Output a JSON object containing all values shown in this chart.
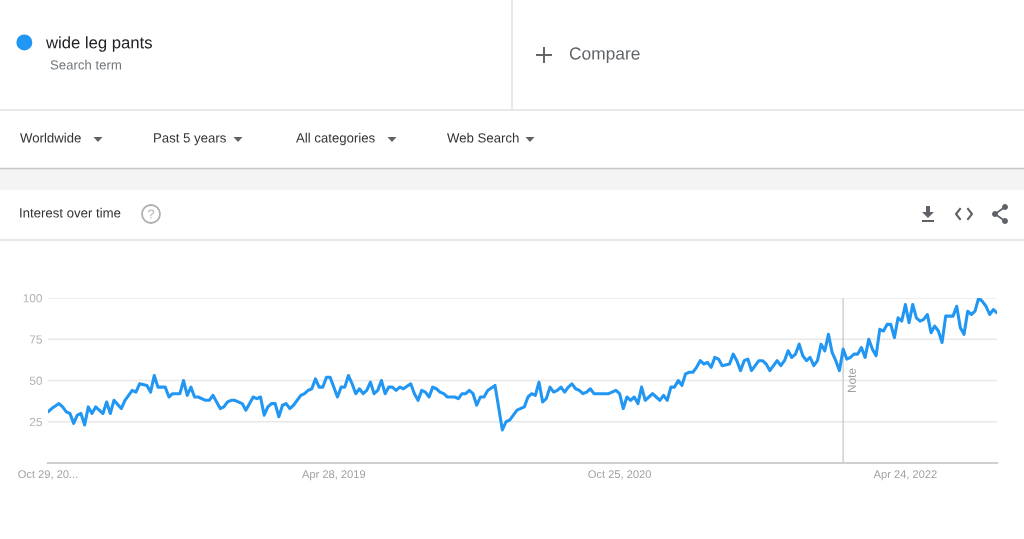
{
  "chart_data": {
    "type": "line",
    "title": "Interest over time",
    "annotations": [
      "Search term",
      "Compare",
      "Worldwide",
      "Past 5 years",
      "All categories",
      "Web Search"
    ],
    "x": [
      "2017-10-29",
      "2017-11-05",
      "2017-11-19",
      "2017-11-26",
      "2017-12-03",
      "2017-12-10",
      "2017-12-17",
      "2017-12-24",
      "2017-12-31",
      "2018-01-07",
      "2018-01-14",
      "2018-01-21",
      "2018-01-28",
      "2018-02-11",
      "2018-02-18",
      "2018-02-25",
      "2018-03-04",
      "2018-03-18",
      "2018-03-25",
      "2018-04-08",
      "2018-04-15",
      "2018-04-22",
      "2018-05-06",
      "2018-05-13",
      "2018-05-20",
      "2018-05-27",
      "2018-06-10",
      "2018-06-17",
      "2018-06-24",
      "2018-07-08",
      "2018-07-15",
      "2018-07-22",
      "2018-07-29",
      "2018-08-05",
      "2018-08-12",
      "2018-08-26",
      "2018-09-02",
      "2018-09-09",
      "2018-09-23",
      "2018-09-30",
      "2018-10-07",
      "2018-10-14",
      "2018-10-21",
      "2018-11-04",
      "2018-11-11",
      "2018-11-25",
      "2018-12-02",
      "2018-12-09",
      "2018-12-16",
      "2018-12-23",
      "2018-12-30",
      "2019-01-06",
      "2019-01-13",
      "2019-01-20",
      "2019-01-27",
      "2019-02-03",
      "2019-02-10",
      "2019-02-24",
      "2019-03-03",
      "2019-03-10",
      "2019-03-17",
      "2019-03-24",
      "2019-03-31",
      "2019-04-07",
      "2019-04-14",
      "2019-04-21",
      "2019-05-05",
      "2019-05-12",
      "2019-05-19",
      "2019-05-26",
      "2019-06-02",
      "2019-06-09",
      "2019-06-16",
      "2019-06-23",
      "2019-06-30",
      "2019-07-07",
      "2019-07-14",
      "2019-07-21",
      "2019-07-28",
      "2019-08-04",
      "2019-08-11",
      "2019-08-18",
      "2019-08-25",
      "2019-09-01",
      "2019-09-08",
      "2019-09-22",
      "2019-09-29",
      "2019-10-06",
      "2019-10-13",
      "2019-10-20",
      "2019-10-27",
      "2019-11-03",
      "2019-11-10",
      "2019-11-17",
      "2019-11-24",
      "2019-12-01",
      "2019-12-15",
      "2019-12-22",
      "2019-12-29",
      "2020-01-05",
      "2020-01-12",
      "2020-01-19",
      "2020-01-26",
      "2020-02-02",
      "2020-02-09",
      "2020-02-16",
      "2020-03-01",
      "2020-03-15",
      "2020-03-22",
      "2020-03-29",
      "2020-04-05",
      "2020-04-12",
      "2020-04-26",
      "2020-05-03",
      "2020-05-10",
      "2020-05-17",
      "2020-05-24",
      "2020-05-31",
      "2020-06-07",
      "2020-06-14",
      "2020-06-21",
      "2020-06-28",
      "2020-07-05",
      "2020-07-12",
      "2020-07-19",
      "2020-07-26",
      "2020-08-02",
      "2020-08-09",
      "2020-08-16",
      "2020-08-23",
      "2020-08-30",
      "2020-09-06",
      "2020-09-13",
      "2020-09-27",
      "2020-10-04",
      "2020-10-18",
      "2020-10-25",
      "2020-11-01",
      "2020-11-08",
      "2020-11-15",
      "2020-11-22",
      "2020-11-29",
      "2020-12-06",
      "2020-12-13",
      "2020-12-20",
      "2020-12-27",
      "2021-01-03",
      "2021-01-10",
      "2021-01-17",
      "2021-01-24",
      "2021-01-31",
      "2021-02-07",
      "2021-02-14",
      "2021-02-21",
      "2021-02-28",
      "2021-03-07",
      "2021-03-14",
      "2021-03-21",
      "2021-03-28",
      "2021-04-04",
      "2021-04-11",
      "2021-04-18",
      "2021-04-25",
      "2021-05-02",
      "2021-05-09",
      "2021-05-23",
      "2021-05-30",
      "2021-06-06",
      "2021-06-13",
      "2021-06-20",
      "2021-06-27",
      "2021-07-04",
      "2021-07-11",
      "2021-07-18",
      "2021-07-25",
      "2021-08-01",
      "2021-08-08",
      "2021-08-15",
      "2021-08-22",
      "2021-08-29",
      "2021-09-05",
      "2021-09-12",
      "2021-09-19",
      "2021-09-26",
      "2021-10-03",
      "2021-10-10",
      "2021-10-17",
      "2021-10-24",
      "2021-10-31",
      "2021-11-07",
      "2021-11-14",
      "2021-11-21",
      "2021-11-28",
      "2021-12-05",
      "2021-12-12",
      "2021-12-19",
      "2021-12-26",
      "2022-01-02",
      "2022-01-09",
      "2022-01-16",
      "2022-01-23",
      "2022-01-30",
      "2022-02-06",
      "2022-02-13",
      "2022-02-20",
      "2022-02-27",
      "2022-03-06",
      "2022-03-13",
      "2022-03-20",
      "2022-03-27",
      "2022-04-03",
      "2022-04-10",
      "2022-04-17",
      "2022-04-24",
      "2022-05-01",
      "2022-05-08",
      "2022-05-15",
      "2022-05-22",
      "2022-05-29",
      "2022-06-05",
      "2022-06-12",
      "2022-06-19",
      "2022-06-26",
      "2022-07-03",
      "2022-07-10",
      "2022-07-17",
      "2022-07-24",
      "2022-07-31",
      "2022-08-07",
      "2022-08-14",
      "2022-08-21",
      "2022-08-28",
      "2022-09-04",
      "2022-09-11",
      "2022-09-18",
      "2022-09-25",
      "2022-10-02",
      "2022-10-09",
      "2022-10-16"
    ],
    "series": [
      {
        "name": "wide leg pants",
        "color": "#2196f3",
        "values": [
          31,
          33,
          36,
          34,
          31,
          30,
          24,
          29,
          30,
          23,
          34,
          30,
          34,
          30,
          37,
          30,
          38,
          33,
          38,
          44,
          43,
          48,
          47,
          43,
          53,
          46,
          46,
          40,
          42,
          42,
          50,
          41,
          46,
          40,
          40,
          38,
          38,
          41,
          33,
          34,
          37,
          38,
          38,
          36,
          32,
          40,
          39,
          40,
          29,
          34,
          36,
          36,
          28,
          35,
          36,
          33,
          35,
          41,
          42,
          44,
          45,
          51,
          46,
          46,
          52,
          52,
          40,
          46,
          46,
          53,
          48,
          42,
          45,
          42,
          44,
          49,
          42,
          44,
          50,
          42,
          46,
          46,
          44,
          46,
          45,
          48,
          42,
          38,
          44,
          43,
          40,
          46,
          45,
          43,
          42,
          40,
          40,
          39,
          42,
          42,
          44,
          42,
          35,
          40,
          40,
          44,
          47,
          20,
          25,
          26,
          29,
          32,
          34,
          40,
          42,
          41,
          49,
          37,
          39,
          46,
          43,
          44,
          46,
          43,
          46,
          48,
          45,
          44,
          42,
          43,
          45,
          42,
          42,
          42,
          42,
          44,
          42,
          33,
          40,
          38,
          40,
          36,
          46,
          38,
          40,
          42,
          40,
          38,
          41,
          38,
          46,
          46,
          50,
          47,
          54,
          55,
          55,
          58,
          62,
          60,
          61,
          58,
          64,
          63,
          59,
          60,
          66,
          62,
          56,
          62,
          63,
          56,
          59,
          62,
          62,
          60,
          56,
          59,
          62,
          59,
          62,
          68,
          64,
          66,
          72,
          65,
          62,
          64,
          59,
          62,
          72,
          68,
          78,
          67,
          62,
          56,
          69,
          63,
          64,
          66,
          66,
          70,
          64,
          75,
          69,
          65,
          81,
          80,
          84,
          84,
          76,
          88,
          86,
          96,
          85,
          96,
          88,
          86,
          87,
          90,
          79,
          83,
          80,
          73,
          89,
          89,
          89,
          95,
          82,
          78,
          92,
          90,
          92,
          100,
          98,
          95,
          90,
          93,
          91
        ]
      }
    ],
    "xlim": [
      "2017-10-29",
      "2022-10-16"
    ],
    "xticks": [
      {
        "value": "2017-10-29",
        "label": "Oct 29, 20..."
      },
      {
        "value": "2019-04-28",
        "label": "Apr 28, 2019"
      },
      {
        "value": "2020-10-25",
        "label": "Oct 25, 2020"
      },
      {
        "value": "2022-04-24",
        "label": "Apr 24, 2022"
      }
    ],
    "ylim": [
      0,
      100
    ],
    "yticks": [
      25,
      50,
      75,
      100
    ],
    "grid": "y",
    "legend": "top left",
    "ref_lines": [
      {
        "axis": "x",
        "value": "2021-12-26",
        "label": "Note",
        "color": "#cccccc"
      }
    ]
  }
}
